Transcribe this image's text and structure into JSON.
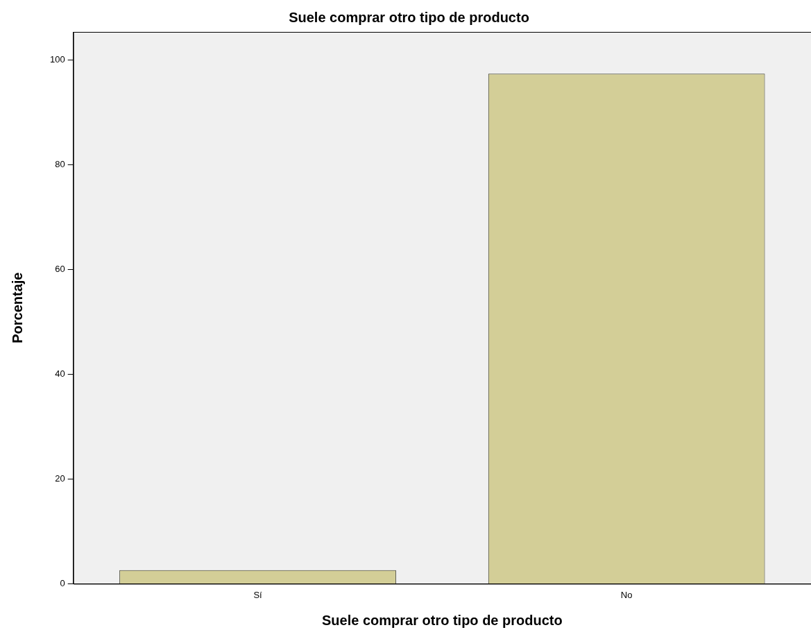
{
  "chart_data": {
    "type": "bar",
    "title": "Suele comprar otro tipo de producto",
    "xlabel": "Suele comprar otro tipo de producto",
    "ylabel": "Porcentaje",
    "categories": [
      "Sí",
      "No"
    ],
    "values": [
      2.6,
      97.4
    ],
    "color": "#d3ce97",
    "ylim": [
      0,
      105.4
    ],
    "yticks": [
      0,
      20,
      40,
      60,
      80,
      100
    ],
    "grid": false,
    "legend": false
  }
}
